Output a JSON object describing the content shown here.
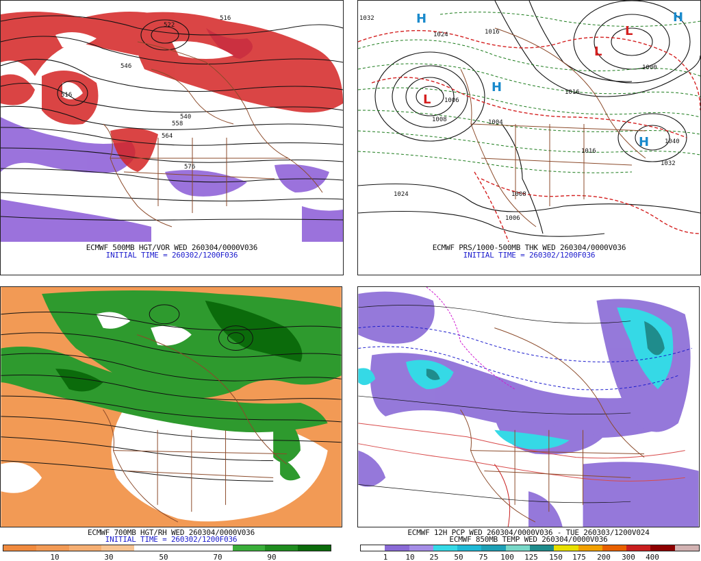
{
  "panels": [
    {
      "id": "p1",
      "captions": [
        "ECMWF 500MB HGT/VOR WED 260304/0000V036",
        "INITIAL TIME = 260302/1200F036"
      ],
      "contour_labels": [
        "516",
        "522",
        "516",
        "546",
        "540",
        "558",
        "564",
        "576"
      ]
    },
    {
      "id": "p2",
      "captions": [
        "ECMWF PRS/1000-500MB THK WED 260304/0000V036",
        "INITIAL TIME = 260302/1200F036"
      ],
      "contour_labels": [
        "1032",
        "1024",
        "1016",
        "1006",
        "1008",
        "1004",
        "1016",
        "1000",
        "1040",
        "1032",
        "1024",
        "1008",
        "1016",
        "1006"
      ],
      "pressure_centers": [
        "L",
        "L",
        "L",
        "H",
        "H",
        "H",
        "H"
      ]
    },
    {
      "id": "p3",
      "captions": [
        "ECMWF 700MB HGT/RH WED 260304/0000V036",
        "INITIAL TIME = 260302/1200F036"
      ],
      "colorbar": {
        "colors": [
          "#f08a3e",
          "#f29a55",
          "#f5ae72",
          "#f8c493",
          "#ffffff",
          "#ffffff",
          "#ffffff",
          "#3aae3a",
          "#1f8c1f",
          "#0b6b0b"
        ],
        "labels": [
          "10",
          "30",
          "50",
          "70",
          "90"
        ]
      }
    },
    {
      "id": "p4",
      "captions": [
        "ECMWF 12H PCP WED 260304/0000V036 - TUE 260303/1200V024",
        "ECMWF 850MB TEMP WED 260304/0000V036"
      ],
      "colorbar": {
        "colors": [
          "#ffffff",
          "#8a6ad6",
          "#a58de6",
          "#35d9e6",
          "#1fb9d6",
          "#1ea0b6",
          "#78d8c8",
          "#1f8c8c",
          "#e8e000",
          "#f2a000",
          "#e86000",
          "#c81e1e",
          "#8c0000",
          "#d2b2b2"
        ],
        "labels": [
          "1",
          "10",
          "25",
          "50",
          "75",
          "100",
          "125",
          "150",
          "175",
          "200",
          "300",
          "400"
        ]
      }
    }
  ]
}
